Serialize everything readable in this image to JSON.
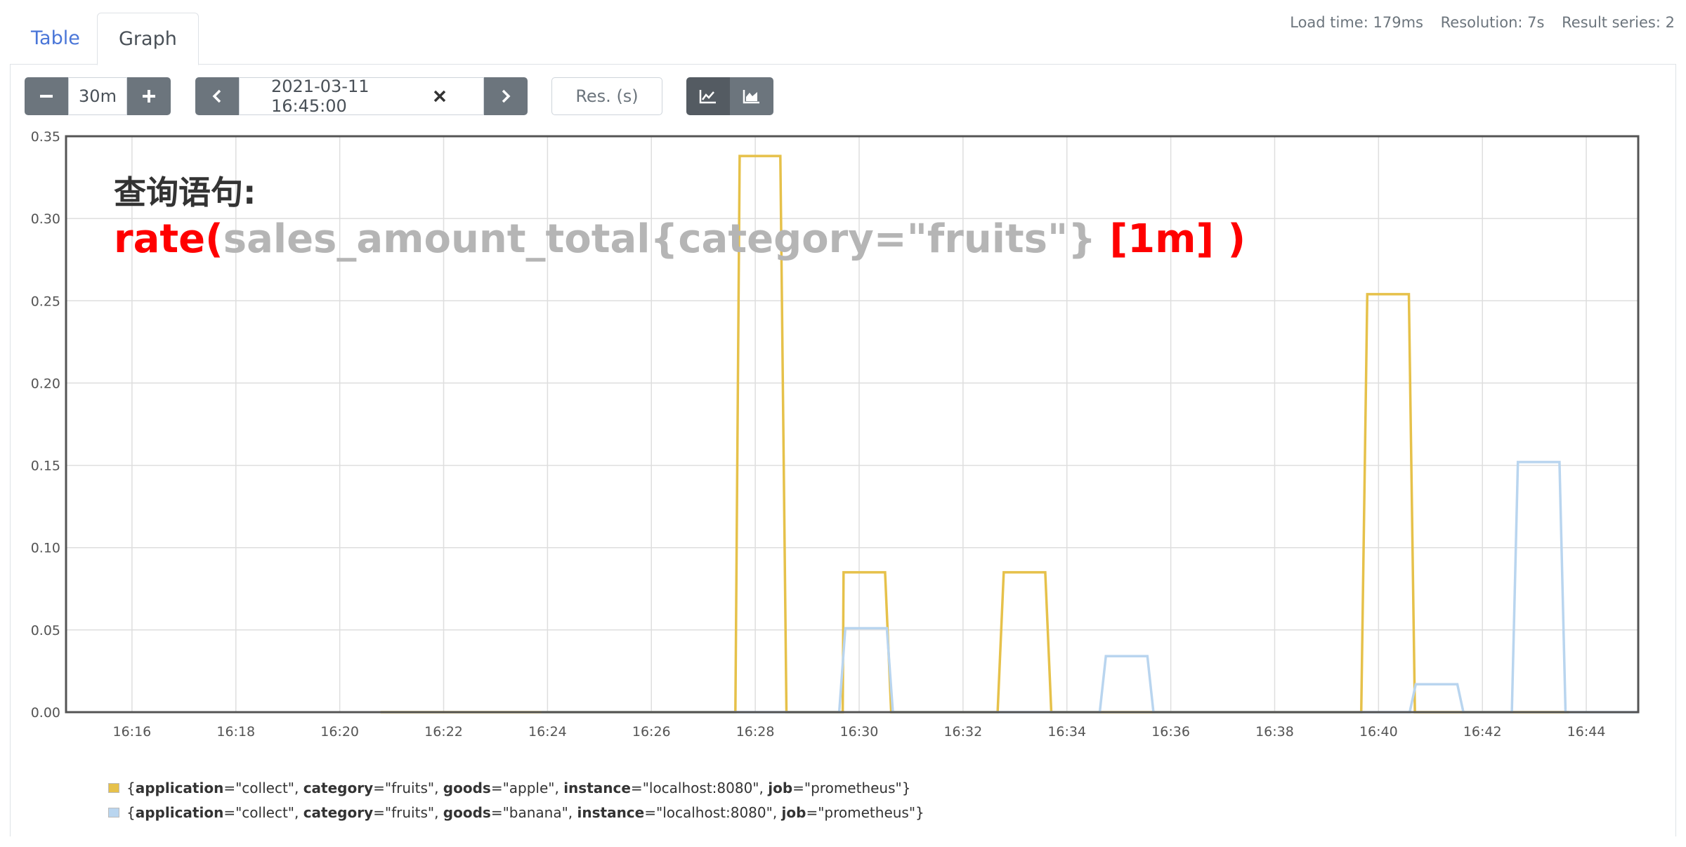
{
  "tabs": {
    "table": "Table",
    "graph": "Graph"
  },
  "stats": {
    "load_time": "Load time: 179ms",
    "resolution": "Resolution: 7s",
    "result_series": "Result series: 2"
  },
  "controls": {
    "range": "30m",
    "end_time": "2021-03-11 16:45:00",
    "resolution_placeholder": "Res. (s)",
    "icons": [
      "minus-icon",
      "plus-icon",
      "chevron-left-icon",
      "close-icon",
      "chevron-right-icon",
      "line-chart-icon",
      "area-chart-icon"
    ]
  },
  "annotation": {
    "heading": "查询语句:",
    "query_parts": [
      "rate(",
      "sales_amount_total{category=\"fruits\"}",
      " [1m] )"
    ],
    "colors": {
      "keyword": "#ff0000",
      "metric": "#b5b5b5",
      "heading": "#333333"
    }
  },
  "legend": [
    {
      "color": "#e6c14a",
      "labels": [
        {
          "key": "application",
          "value": "\"collect\""
        },
        {
          "key": "category",
          "value": "\"fruits\""
        },
        {
          "key": "goods",
          "value": "\"apple\""
        },
        {
          "key": "instance",
          "value": "\"localhost:8080\""
        },
        {
          "key": "job",
          "value": "\"prometheus\""
        }
      ]
    },
    {
      "color": "#b9d5ef",
      "labels": [
        {
          "key": "application",
          "value": "\"collect\""
        },
        {
          "key": "category",
          "value": "\"fruits\""
        },
        {
          "key": "goods",
          "value": "\"banana\""
        },
        {
          "key": "instance",
          "value": "\"localhost:8080\""
        },
        {
          "key": "job",
          "value": "\"prometheus\""
        }
      ]
    }
  ],
  "chart_data": {
    "type": "line",
    "title": "",
    "xlabel": "",
    "ylabel": "",
    "x_ticks": [
      "16:16",
      "16:18",
      "16:20",
      "16:22",
      "16:24",
      "16:26",
      "16:28",
      "16:30",
      "16:32",
      "16:34",
      "16:36",
      "16:38",
      "16:40",
      "16:42",
      "16:44"
    ],
    "y_ticks": [
      "0.00",
      "0.05",
      "0.10",
      "0.15",
      "0.20",
      "0.25",
      "0.30",
      "0.35"
    ],
    "xlim_minutes": [
      975.0,
      1005.0
    ],
    "ylim": [
      0,
      0.35
    ],
    "grid": true,
    "series": [
      {
        "name": "apple",
        "color": "#e6c14a",
        "points": [
          [
            "16:20:47",
            0
          ],
          [
            "16:23:53",
            0
          ],
          [
            "16:27:37",
            0
          ],
          [
            "16:27:42",
            0.338
          ],
          [
            "16:28:29",
            0.338
          ],
          [
            "16:28:36",
            0
          ],
          [
            "16:29:41",
            0
          ],
          [
            "16:29:42",
            0.085
          ],
          [
            "16:30:30",
            0.085
          ],
          [
            "16:30:37",
            0
          ],
          [
            "16:32:40",
            0
          ],
          [
            "16:32:47",
            0.085
          ],
          [
            "16:33:35",
            0.085
          ],
          [
            "16:33:42",
            0
          ],
          [
            "16:34:42",
            0
          ],
          [
            "16:35:37",
            0
          ],
          [
            "16:39:40",
            0
          ],
          [
            "16:39:47",
            0.254
          ],
          [
            "16:40:35",
            0.254
          ],
          [
            "16:40:42",
            0
          ],
          [
            "16:41:40",
            0
          ],
          [
            "16:42:40",
            0
          ],
          [
            "16:43:40",
            0
          ]
        ]
      },
      {
        "name": "banana",
        "color": "#b9d5ef",
        "points": [
          [
            "16:23:53",
            0
          ],
          [
            "16:29:37",
            0
          ],
          [
            "16:29:44",
            0.051
          ],
          [
            "16:30:32",
            0.051
          ],
          [
            "16:30:39",
            0
          ],
          [
            "16:34:38",
            0
          ],
          [
            "16:34:45",
            0.034
          ],
          [
            "16:35:33",
            0.034
          ],
          [
            "16:35:40",
            0
          ],
          [
            "16:40:36",
            0
          ],
          [
            "16:40:43",
            0.017
          ],
          [
            "16:41:31",
            0.017
          ],
          [
            "16:41:38",
            0
          ],
          [
            "16:42:34",
            0
          ],
          [
            "16:42:41",
            0.152
          ],
          [
            "16:43:29",
            0.152
          ],
          [
            "16:43:36",
            0
          ],
          [
            "16:45:00",
            0
          ]
        ]
      }
    ]
  }
}
